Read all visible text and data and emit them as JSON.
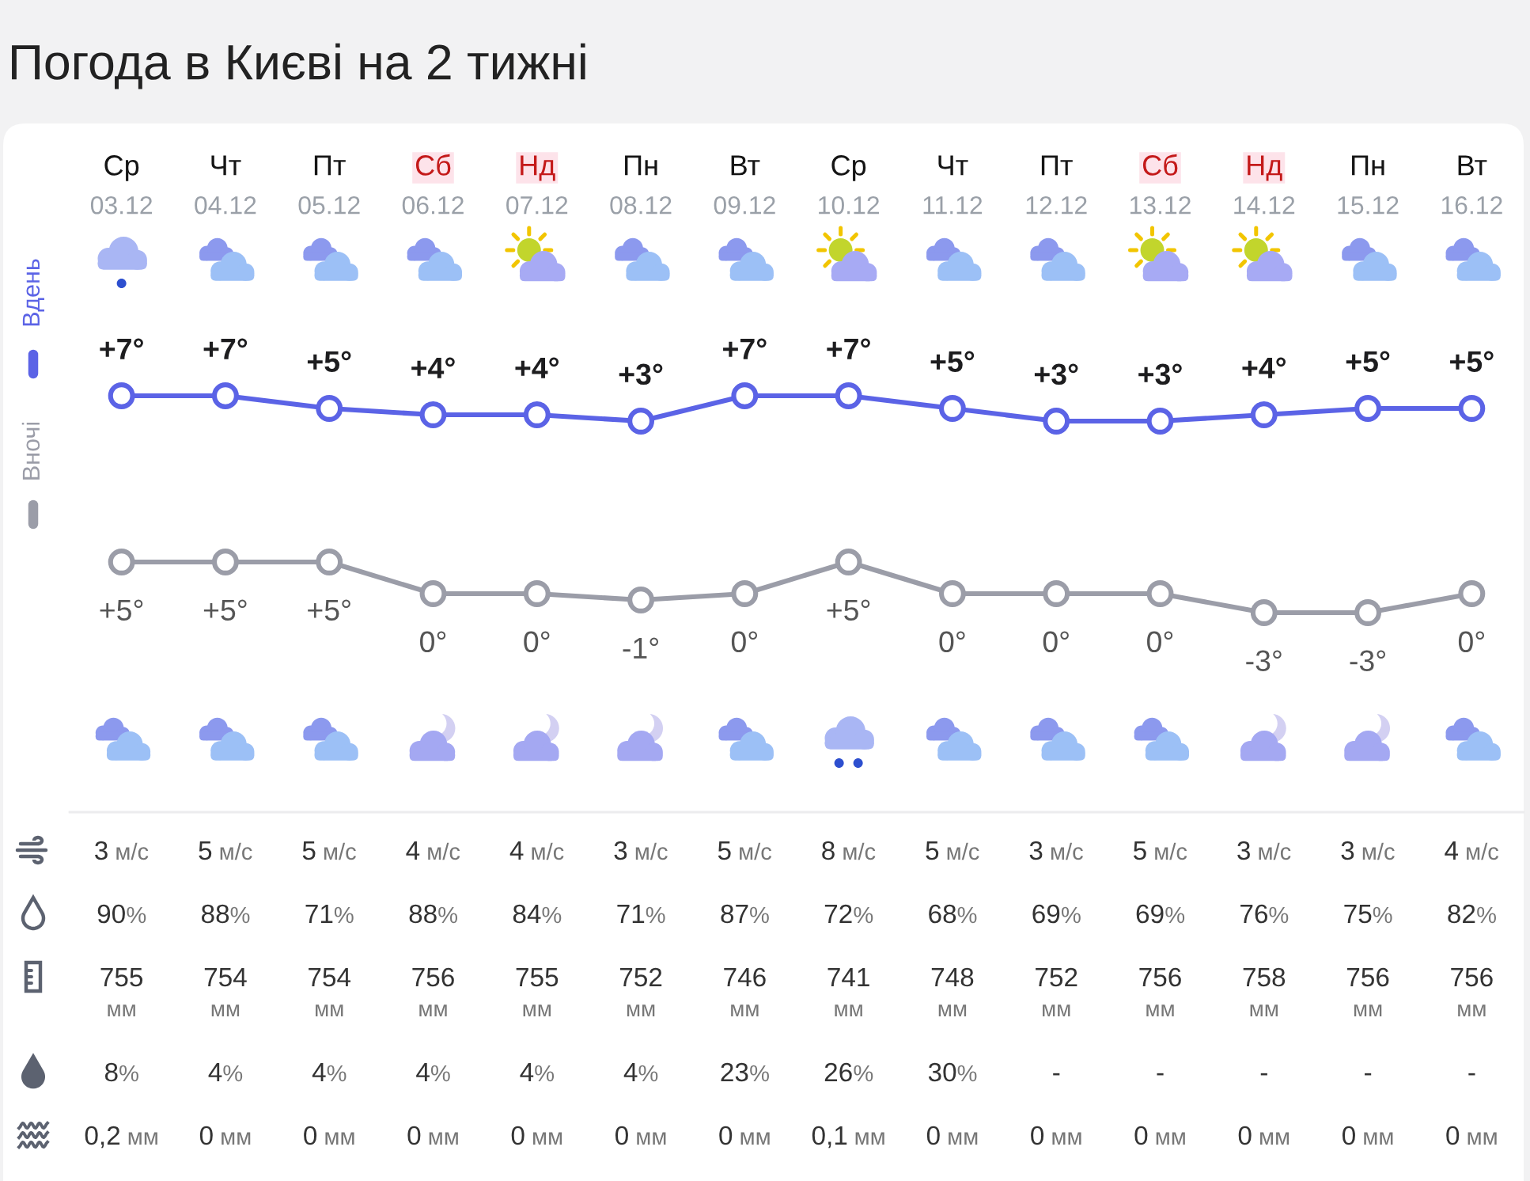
{
  "chart_data": [
    {
      "type": "line",
      "title": "Погода в Києві на 2 тижні",
      "categories": [
        "Ср\n03.12",
        "Чт\n04.12",
        "Пт\n05.12",
        "Сб\n06.12",
        "Нд\n07.12",
        "Пн\n08.12",
        "Вт\n09.12",
        "Ср\n10.12",
        "Чт\n11.12",
        "Пт\n12.12",
        "Сб\n13.12",
        "Нд\n14.12",
        "Пн\n15.12",
        "Вт\n16.12"
      ],
      "series": [
        {
          "name": "Вдень",
          "color": "#5b63e6",
          "values": [
            7,
            7,
            5,
            4,
            4,
            3,
            7,
            7,
            5,
            3,
            3,
            4,
            5,
            5
          ],
          "value_labels": [
            "+7°",
            "+7°",
            "+5°",
            "+4°",
            "+4°",
            "+3°",
            "+7°",
            "+7°",
            "+5°",
            "+3°",
            "+3°",
            "+4°",
            "+5°",
            "+5°"
          ]
        }
      ],
      "marker": "circle",
      "line_style": "solid",
      "legend": "left",
      "tick_labels": "x"
    },
    {
      "type": "line",
      "categories": [
        null,
        null,
        null,
        null,
        null,
        null,
        null,
        null,
        null,
        null,
        null,
        null,
        null,
        null
      ],
      "series": [
        {
          "name": "Вночі",
          "color": "#9b9da8",
          "values": [
            5,
            5,
            5,
            0,
            0,
            -1,
            0,
            5,
            0,
            0,
            0,
            -3,
            -3,
            0
          ],
          "value_labels": [
            "+5°",
            "+5°",
            "+5°",
            "0°",
            "0°",
            "-1°",
            "0°",
            "+5°",
            "0°",
            "0°",
            "0°",
            "-3°",
            "-3°",
            "0°"
          ]
        }
      ],
      "marker": "circle",
      "line_style": "solid",
      "legend": "left",
      "tick_labels": false
    },
    {
      "type": "other",
      "annotations": [
        "3 м/с",
        "5 м/с",
        "5 м/с",
        "4 м/с",
        "4 м/с",
        "3 м/с",
        "5 м/с",
        "8 м/с",
        "5 м/с",
        "3 м/с",
        "5 м/с",
        "3 м/с",
        "3 м/с",
        "4 м/с"
      ]
    },
    {
      "type": "other",
      "annotations": [
        "90%",
        "88%",
        "71%",
        "88%",
        "84%",
        "71%",
        "87%",
        "72%",
        "68%",
        "69%",
        "69%",
        "76%",
        "75%",
        "82%"
      ]
    },
    {
      "type": "other",
      "annotations": [
        "755\nмм",
        "754\nмм",
        "754\nмм",
        "756\nмм",
        "755\nмм",
        "752\nмм",
        "746\nмм",
        "741\nмм",
        "748\nмм",
        "752\nмм",
        "756\nмм",
        "758\nмм",
        "756\nмм",
        "756\nмм"
      ]
    },
    {
      "type": "other",
      "annotations": [
        "8%",
        "4%",
        "4%",
        "4%",
        "4%",
        "4%",
        "23%",
        "26%",
        "30%",
        "-",
        "-",
        "-",
        "-",
        "-"
      ]
    },
    {
      "type": "other",
      "annotations": [
        "0,2 мм",
        "0 мм",
        "0 мм",
        "0 мм",
        "0 мм",
        "0 мм",
        "0 мм",
        "0,1 мм",
        "0 мм",
        "0 мм",
        "0 мм",
        "0 мм",
        "0 мм",
        "0 мм"
      ]
    }
  ]
}
